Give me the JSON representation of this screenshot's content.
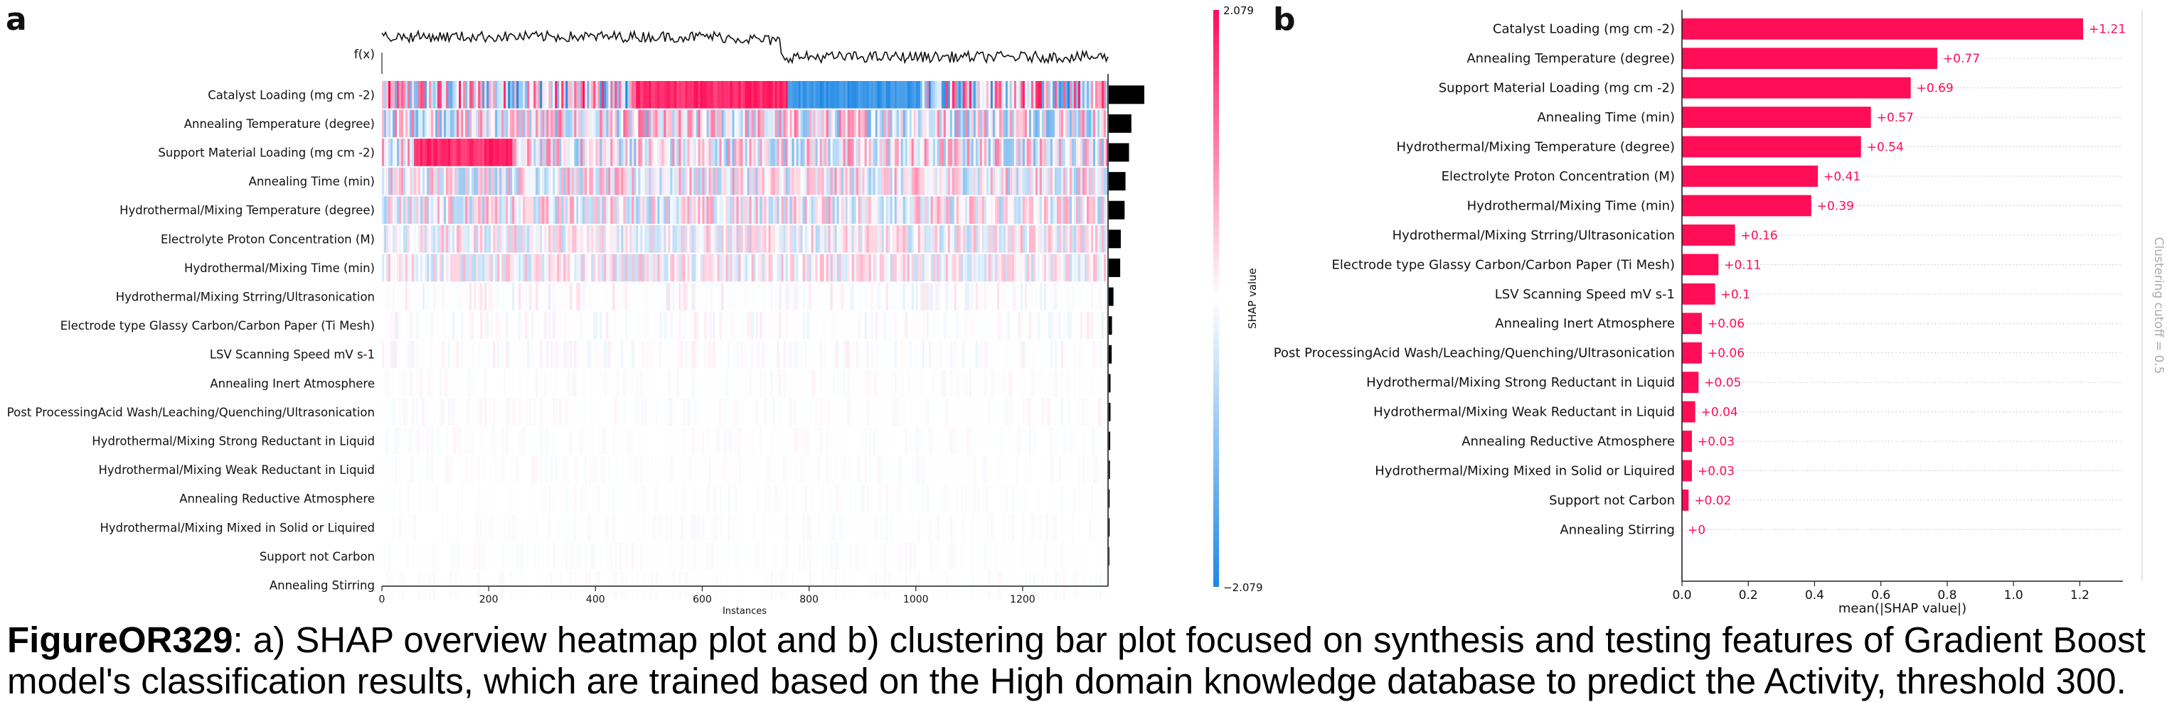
{
  "panels": {
    "a": "a",
    "b": "b"
  },
  "caption": {
    "figure_id": "FigureOR329",
    "text": ": a) SHAP overview heatmap plot and b) clustering bar plot focused on synthesis and testing features of Gradient Boost model's classification results, which are trained based on the High domain knowledge database to predict the Activity, threshold 300."
  },
  "colors": {
    "positive": "#ff0d57",
    "negative": "#1e88e5",
    "importance_bar": "#000000",
    "neutral": "#ffffff"
  },
  "chart_data": [
    {
      "type": "heatmap",
      "panel": "a",
      "features": [
        "Catalyst Loading (mg cm -2)",
        "Annealing Temperature (degree)",
        "Support Material Loading (mg cm -2)",
        "Annealing Time (min)",
        "Hydrothermal/Mixing Temperature (degree)",
        "Electrolyte Proton Concentration (M)",
        "Hydrothermal/Mixing Time (min)",
        "Hydrothermal/Mixing Strring/Ultrasonication",
        "Electrode type Glassy Carbon/Carbon Paper (Ti Mesh)",
        "LSV Scanning Speed mV s-1",
        "Annealing Inert Atmosphere",
        "Post ProcessingAcid Wash/Leaching/Quenching/Ultrasonication",
        "Hydrothermal/Mixing Strong Reductant in Liquid",
        "Hydrothermal/Mixing Weak Reductant in Liquid",
        "Annealing Reductive Atmosphere",
        "Hydrothermal/Mixing Mixed in Solid or Liquired",
        "Support not Carbon",
        "Annealing Stirring"
      ],
      "fx_label": "f(x)",
      "xlabel": "Instances",
      "x_ticks": [
        0,
        200,
        400,
        600,
        800,
        1000,
        1200
      ],
      "x_range": [
        0,
        1360
      ],
      "colorbar": {
        "label": "SHAP value",
        "max_label": "2.079",
        "min_label": "−2.079",
        "max": 2.079,
        "min": -2.079
      },
      "importance_bars": [
        1.21,
        0.77,
        0.69,
        0.57,
        0.54,
        0.41,
        0.39,
        0.16,
        0.11,
        0.1,
        0.06,
        0.06,
        0.05,
        0.04,
        0.03,
        0.03,
        0.02,
        0.0
      ],
      "dominant_regions": [
        {
          "feature": "Catalyst Loading (mg cm -2)",
          "from": 480,
          "to": 760,
          "sign": "positive"
        },
        {
          "feature": "Catalyst Loading (mg cm -2)",
          "from": 760,
          "to": 1010,
          "sign": "negative"
        },
        {
          "feature": "Support Material Loading (mg cm -2)",
          "from": 60,
          "to": 245,
          "sign": "positive"
        }
      ]
    },
    {
      "type": "bar",
      "panel": "b",
      "orientation": "horizontal",
      "categories": [
        "Catalyst Loading (mg cm -2)",
        "Annealing Temperature (degree)",
        "Support Material Loading (mg cm -2)",
        "Annealing Time (min)",
        "Hydrothermal/Mixing Temperature (degree)",
        "Electrolyte Proton Concentration (M)",
        "Hydrothermal/Mixing Time (min)",
        "Hydrothermal/Mixing Strring/Ultrasonication",
        "Electrode type Glassy Carbon/Carbon Paper (Ti Mesh)",
        "LSV Scanning Speed mV s-1",
        "Annealing Inert Atmosphere",
        "Post ProcessingAcid Wash/Leaching/Quenching/Ultrasonication",
        "Hydrothermal/Mixing Strong Reductant in Liquid",
        "Hydrothermal/Mixing Weak Reductant in Liquid",
        "Annealing Reductive Atmosphere",
        "Hydrothermal/Mixing Mixed in Solid or Liquired",
        "Support not Carbon",
        "Annealing Stirring"
      ],
      "values": [
        1.21,
        0.77,
        0.69,
        0.57,
        0.54,
        0.41,
        0.39,
        0.16,
        0.11,
        0.1,
        0.06,
        0.06,
        0.05,
        0.04,
        0.03,
        0.03,
        0.02,
        0
      ],
      "value_labels": [
        "+1.21",
        "+0.77",
        "+0.69",
        "+0.57",
        "+0.54",
        "+0.41",
        "+0.39",
        "+0.16",
        "+0.11",
        "+0.1",
        "+0.06",
        "+0.06",
        "+0.05",
        "+0.04",
        "+0.03",
        "+0.03",
        "+0.02",
        "+0"
      ],
      "xlabel": "mean(|SHAP value|)",
      "x_ticks": [
        "0.0",
        "0.2",
        "0.4",
        "0.6",
        "0.8",
        "1.0",
        "1.2"
      ],
      "xlim": [
        0,
        1.33
      ],
      "side_label": "Clustering cutoff = 0.5",
      "grid": "horizontal dashed"
    }
  ]
}
